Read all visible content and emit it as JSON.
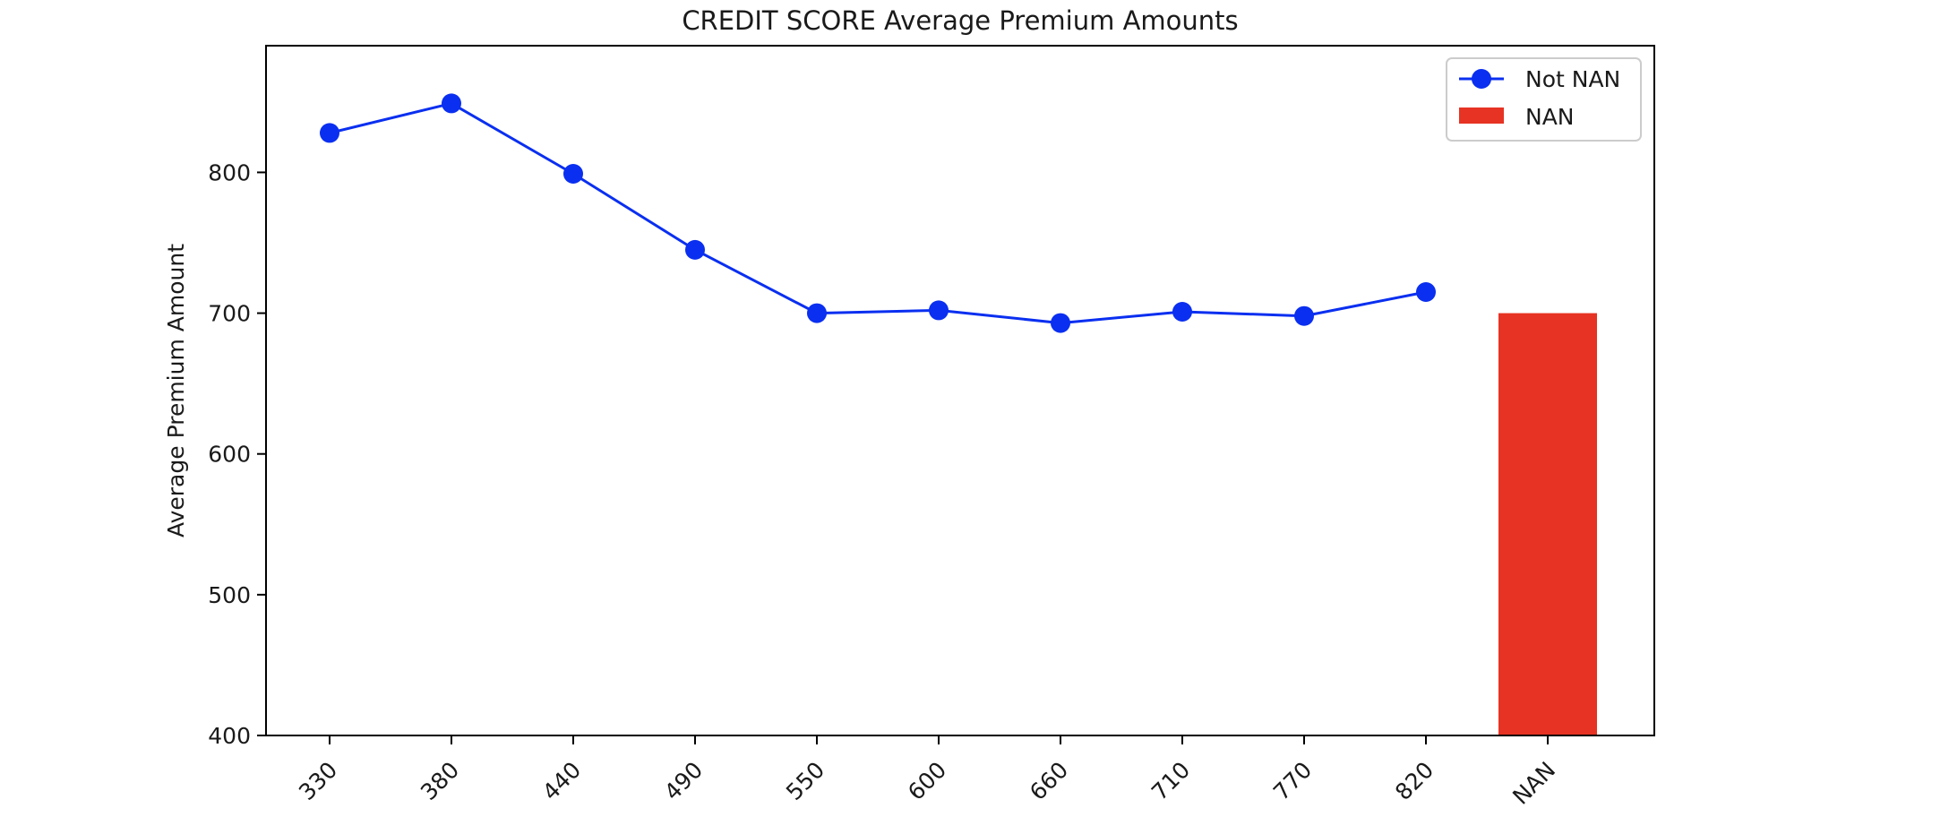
{
  "chart_data": {
    "type": "line",
    "title": "CREDIT SCORE Average Premium Amounts",
    "xlabel": "",
    "ylabel": "Average Premium Amount",
    "ylim": [
      400,
      890
    ],
    "yticks": [
      400,
      500,
      600,
      700,
      800
    ],
    "grid": false,
    "legend_position": "top-right",
    "categories": [
      "330",
      "380",
      "440",
      "490",
      "550",
      "600",
      "660",
      "710",
      "770",
      "820",
      "NAN"
    ],
    "series": [
      {
        "name": "Not NAN",
        "type": "line",
        "color": "#0a2ff0",
        "marker": "circle",
        "x": [
          "330",
          "380",
          "440",
          "490",
          "550",
          "600",
          "660",
          "710",
          "770",
          "820"
        ],
        "values": [
          828,
          849,
          799,
          745,
          700,
          702,
          693,
          701,
          698,
          715
        ]
      },
      {
        "name": "NAN",
        "type": "bar",
        "color": "#e63323",
        "x": [
          "NAN"
        ],
        "values": [
          700
        ]
      }
    ]
  }
}
